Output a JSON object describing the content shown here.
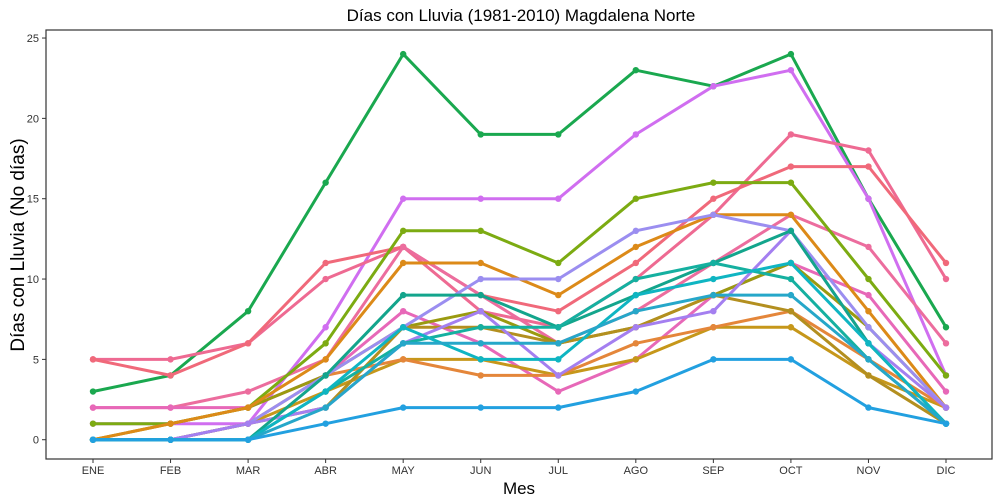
{
  "chart_data": {
    "type": "line",
    "title": "Días con Lluvia (1981-2010)  Magdalena Norte",
    "xlabel": "Mes",
    "ylabel": "Días con Lluvia (No días)",
    "categories": [
      "ENE",
      "FEB",
      "MAR",
      "ABR",
      "MAY",
      "JUN",
      "JUL",
      "AGO",
      "SEP",
      "OCT",
      "NOV",
      "DIC"
    ],
    "ylim": [
      -1.2,
      25.5
    ],
    "yticks": [
      0,
      5,
      10,
      15,
      20,
      25
    ],
    "grid": false,
    "legend": "none",
    "series": [
      {
        "color": "#1aa84f",
        "values": [
          3,
          4,
          8,
          16,
          24,
          19,
          19,
          23,
          22,
          24,
          15,
          7
        ]
      },
      {
        "color": "#d06ef0",
        "values": [
          1,
          1,
          1,
          7,
          15,
          15,
          15,
          19,
          22,
          23,
          15,
          4
        ]
      },
      {
        "color": "#ee6a92",
        "values": [
          5,
          5,
          6,
          10,
          12,
          8,
          7,
          10,
          14,
          19,
          18,
          10
        ]
      },
      {
        "color": "#f0697a",
        "values": [
          5,
          4,
          6,
          11,
          12,
          9,
          8,
          11,
          15,
          17,
          17,
          11
        ]
      },
      {
        "color": "#ec6d9e",
        "values": [
          2,
          2,
          3,
          5,
          12,
          9,
          6,
          8,
          11,
          14,
          12,
          6
        ]
      },
      {
        "color": "#e768b8",
        "values": [
          2,
          2,
          2,
          4,
          8,
          6,
          3,
          5,
          9,
          11,
          9,
          3
        ]
      },
      {
        "color": "#7cab12",
        "values": [
          1,
          1,
          2,
          6,
          13,
          13,
          11,
          15,
          16,
          16,
          10,
          4
        ]
      },
      {
        "color": "#9a9a10",
        "values": [
          0,
          1,
          2,
          4,
          7,
          8,
          6,
          7,
          9,
          11,
          7,
          2
        ]
      },
      {
        "color": "#dc8a18",
        "values": [
          0,
          1,
          2,
          5,
          11,
          11,
          9,
          12,
          14,
          14,
          8,
          2
        ]
      },
      {
        "color": "#c6971a",
        "values": [
          0,
          0,
          1,
          3,
          5,
          5,
          4,
          5,
          7,
          7,
          4,
          2
        ]
      },
      {
        "color": "#e4863a",
        "values": [
          0,
          0,
          1,
          4,
          5,
          4,
          4,
          6,
          7,
          8,
          5,
          2
        ]
      },
      {
        "color": "#b38f1f",
        "values": [
          0,
          0,
          1,
          2,
          7,
          7,
          6,
          7,
          9,
          8,
          4,
          1
        ]
      },
      {
        "color": "#9b8ef0",
        "values": [
          0,
          0,
          1,
          4,
          7,
          10,
          10,
          13,
          14,
          13,
          7,
          2
        ]
      },
      {
        "color": "#a47ff0",
        "values": [
          0,
          0,
          1,
          2,
          6,
          8,
          4,
          7,
          8,
          13,
          6,
          2
        ]
      },
      {
        "color": "#13a58c",
        "values": [
          0,
          0,
          0,
          4,
          9,
          9,
          7,
          9,
          11,
          13,
          6,
          1
        ]
      },
      {
        "color": "#15b0a0",
        "values": [
          0,
          0,
          0,
          3,
          6,
          7,
          7,
          10,
          11,
          10,
          5,
          1
        ]
      },
      {
        "color": "#0fb5c2",
        "values": [
          0,
          0,
          0,
          3,
          7,
          5,
          5,
          9,
          10,
          11,
          6,
          1
        ]
      },
      {
        "color": "#26a7c9",
        "values": [
          0,
          0,
          0,
          2,
          6,
          6,
          6,
          8,
          9,
          9,
          5,
          1
        ]
      },
      {
        "color": "#22a0e0",
        "values": [
          0,
          0,
          0,
          1,
          2,
          2,
          2,
          3,
          5,
          5,
          2,
          1
        ]
      }
    ]
  }
}
